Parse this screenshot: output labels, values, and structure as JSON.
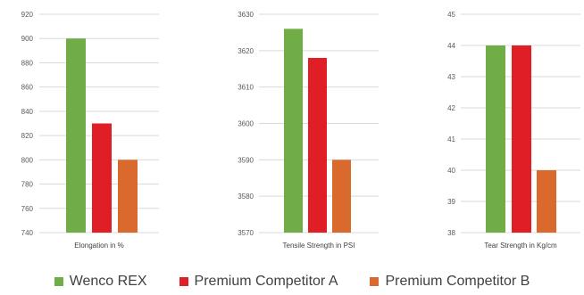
{
  "chart_data": [
    {
      "type": "bar",
      "title": "",
      "xlabel": "Elongation in %",
      "ylabel": "",
      "categories": [
        "Wenco REX",
        "Premium Competitor A",
        "Premium Competitor B"
      ],
      "values": [
        900,
        830,
        800
      ],
      "ylim": [
        740,
        920
      ],
      "yticks": [
        740,
        760,
        780,
        800,
        820,
        840,
        860,
        880,
        900,
        920
      ],
      "grid": true
    },
    {
      "type": "bar",
      "title": "",
      "xlabel": "Tensile Strength in PSI",
      "ylabel": "",
      "categories": [
        "Wenco REX",
        "Premium Competitor A",
        "Premium Competitor B"
      ],
      "values": [
        3626,
        3618,
        3590
      ],
      "ylim": [
        3570,
        3630
      ],
      "yticks": [
        3570,
        3580,
        3590,
        3600,
        3610,
        3620,
        3630
      ],
      "grid": true
    },
    {
      "type": "bar",
      "title": "",
      "xlabel": "Tear Strength in Kg/cm",
      "ylabel": "",
      "categories": [
        "Wenco REX",
        "Premium Competitor A",
        "Premium Competitor B"
      ],
      "values": [
        44,
        44,
        40
      ],
      "ylim": [
        38,
        45
      ],
      "yticks": [
        38,
        39,
        40,
        41,
        42,
        43,
        44,
        45
      ],
      "grid": true
    }
  ],
  "legend": {
    "placement": "bottom",
    "items": [
      {
        "label": "Wenco REX",
        "color": "#70ad47"
      },
      {
        "label": "Premium Competitor A",
        "color": "#e01e25"
      },
      {
        "label": "Premium Competitor B",
        "color": "#d9692c"
      }
    ]
  },
  "colors": {
    "gridline": "#d9d9d9",
    "tick_text": "#595959",
    "axis_title_text": "#404040"
  }
}
